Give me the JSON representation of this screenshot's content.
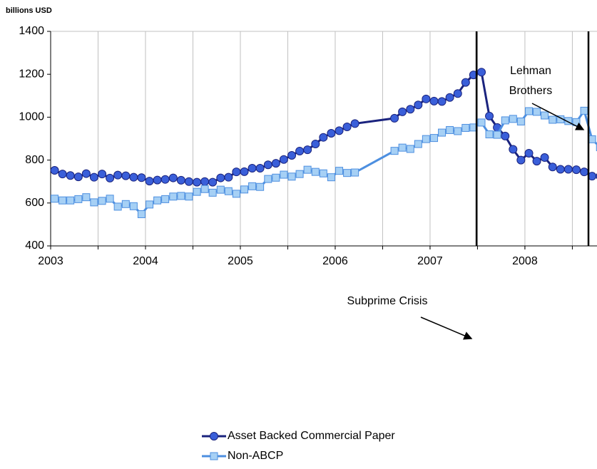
{
  "chart_data": {
    "type": "line",
    "unit_label": "billions USD",
    "x": [
      2003.042,
      2003.125,
      2003.208,
      2003.292,
      2003.375,
      2003.458,
      2003.542,
      2003.625,
      2003.708,
      2003.792,
      2003.875,
      2003.958,
      2004.042,
      2004.125,
      2004.208,
      2004.292,
      2004.375,
      2004.458,
      2004.542,
      2004.625,
      2004.708,
      2004.792,
      2004.875,
      2004.958,
      2005.042,
      2005.125,
      2005.208,
      2005.292,
      2005.375,
      2005.458,
      2005.542,
      2005.625,
      2005.708,
      2005.792,
      2005.875,
      2005.958,
      2006.042,
      2006.125,
      2006.208,
      2006.625,
      2006.708,
      2006.792,
      2006.875,
      2006.958,
      2007.042,
      2007.125,
      2007.208,
      2007.292,
      2007.375,
      2007.458,
      2007.542,
      2007.625,
      2007.708,
      2007.792,
      2007.875,
      2007.958,
      2008.042,
      2008.125,
      2008.208,
      2008.292,
      2008.375,
      2008.458,
      2008.542,
      2008.625,
      2008.708,
      2008.792
    ],
    "series": [
      {
        "name": "Asset Backed Commercial Paper",
        "color": "#1a237e",
        "marker": "circle",
        "marker_color": "#3a5fd9",
        "values": [
          752,
          735,
          728,
          722,
          737,
          720,
          735,
          716,
          730,
          727,
          720,
          718,
          702,
          707,
          710,
          717,
          706,
          700,
          697,
          700,
          697,
          717,
          720,
          745,
          746,
          762,
          762,
          778,
          785,
          803,
          822,
          842,
          848,
          875,
          906,
          925,
          937,
          955,
          970,
          995,
          1025,
          1037,
          1057,
          1085,
          1075,
          1073,
          1092,
          1110,
          1162,
          1197,
          1210,
          1005,
          952,
          912,
          850,
          800,
          832,
          795,
          812,
          768,
          757,
          757,
          755,
          745,
          725,
          725
        ]
      },
      {
        "name": "Non-ABCP",
        "color": "#4d8fe0",
        "marker": "square",
        "marker_color": "#a6d0f5",
        "values": [
          620,
          612,
          612,
          618,
          627,
          603,
          610,
          620,
          583,
          595,
          585,
          548,
          593,
          612,
          618,
          630,
          633,
          630,
          652,
          665,
          648,
          662,
          655,
          643,
          663,
          678,
          675,
          712,
          718,
          732,
          723,
          735,
          755,
          745,
          738,
          720,
          750,
          740,
          742,
          843,
          858,
          852,
          875,
          898,
          903,
          928,
          940,
          935,
          950,
          952,
          975,
          920,
          918,
          985,
          992,
          980,
          1028,
          1025,
          1008,
          988,
          990,
          982,
          977,
          1030,
          897,
          860
        ]
      }
    ],
    "xlim": [
      2003,
      2008.76
    ],
    "xticks": [
      2003,
      2004,
      2005,
      2006,
      2007,
      2008
    ],
    "xgrid": [
      2003.5,
      2004,
      2004.5,
      2005,
      2005.5,
      2006,
      2006.5,
      2007,
      2007.5,
      2008,
      2008.5
    ],
    "ylim": [
      400,
      1400
    ],
    "yticks": [
      400,
      600,
      800,
      1000,
      1200,
      1400
    ],
    "grid": "x",
    "events": [
      {
        "x": 2007.49,
        "label": [
          "Subprime Crisis"
        ]
      },
      {
        "x": 2008.67,
        "label": [
          "Lehman",
          "Brothers"
        ]
      }
    ],
    "legend": "bottom"
  }
}
